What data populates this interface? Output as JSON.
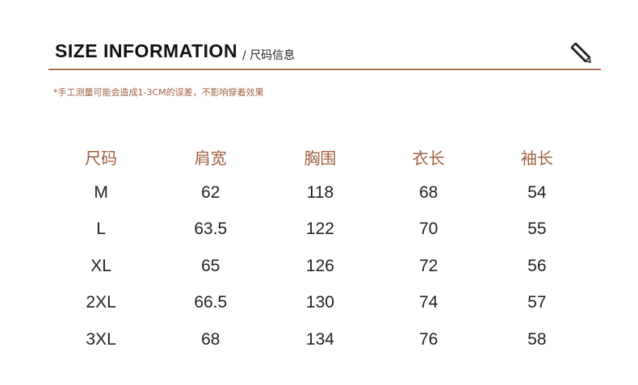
{
  "header": {
    "title": "SIZE INFORMATION",
    "subtitle": "/ 尺码信息",
    "icon": "ruler-pencil-icon",
    "accent_color": "#a87156"
  },
  "note": "*手工测量可能会造成1-3CM的误差，不影响穿着效果",
  "table": {
    "headers": [
      "尺码",
      "肩宽",
      "胸围",
      "衣长",
      "袖长"
    ],
    "rows": [
      [
        "M",
        "62",
        "118",
        "68",
        "54"
      ],
      [
        "L",
        "63.5",
        "122",
        "70",
        "55"
      ],
      [
        "XL",
        "65",
        "126",
        "72",
        "56"
      ],
      [
        "2XL",
        "66.5",
        "130",
        "74",
        "57"
      ],
      [
        "3XL",
        "68",
        "134",
        "76",
        "58"
      ]
    ]
  }
}
